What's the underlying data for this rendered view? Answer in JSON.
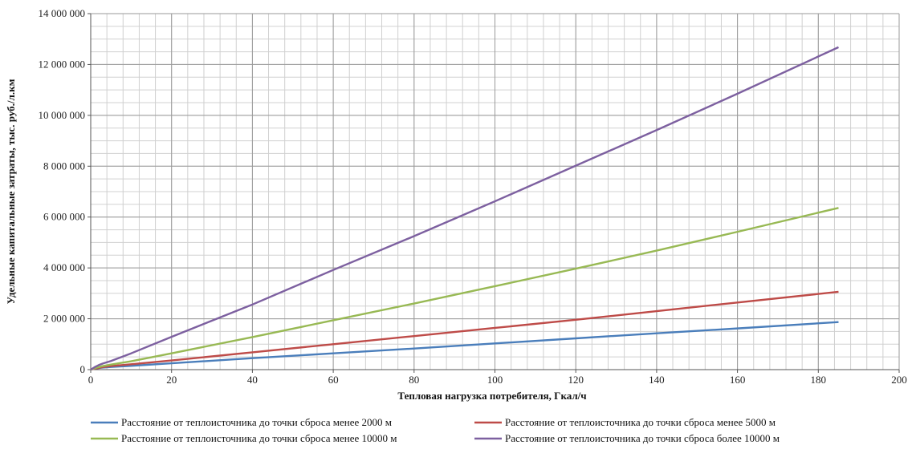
{
  "chart_data": {
    "type": "line",
    "xlabel": "Тепловая нагрузка потребителя, Гкал/ч",
    "ylabel": "Удельные капитальные затраты, тыс. руб./л.км",
    "xlim": [
      0,
      200
    ],
    "ylim": [
      0,
      14000000
    ],
    "x_ticks": [
      0,
      20,
      40,
      60,
      80,
      100,
      120,
      140,
      160,
      180,
      200
    ],
    "x_tick_labels": [
      "0",
      "20",
      "40",
      "60",
      "80",
      "100",
      "120",
      "140",
      "160",
      "180",
      "200"
    ],
    "y_ticks": [
      0,
      2000000,
      4000000,
      6000000,
      8000000,
      10000000,
      12000000,
      14000000
    ],
    "y_tick_labels": [
      "0",
      "2 000 000",
      "4 000 000",
      "6 000 000",
      "8 000 000",
      "10 000 000",
      "12 000 000",
      "14 000 000"
    ],
    "grid": true,
    "grid_minor_x_step": 4,
    "grid_minor_y_step": 500000,
    "legend_position": "bottom",
    "series": [
      {
        "name": "Расстояние от теплоисточника до точки сброса менее 2000 м",
        "color": "#4a7ebb",
        "x": [
          0,
          1,
          2,
          3,
          5,
          10,
          20,
          40,
          60,
          80,
          100,
          120,
          140,
          160,
          185
        ],
        "y": [
          0,
          40000,
          60000,
          80000,
          105000,
          150000,
          250000,
          450000,
          640000,
          830000,
          1030000,
          1230000,
          1430000,
          1620000,
          1870000
        ]
      },
      {
        "name": "Расстояние от теплоисточника до точки сброса менее 5000 м",
        "color": "#be4b48",
        "x": [
          0,
          1,
          2,
          3,
          5,
          10,
          20,
          40,
          60,
          80,
          100,
          120,
          140,
          160,
          185
        ],
        "y": [
          0,
          40000,
          70000,
          100000,
          140000,
          210000,
          360000,
          680000,
          1000000,
          1320000,
          1640000,
          1960000,
          2300000,
          2640000,
          3060000
        ]
      },
      {
        "name": "Расстояние от теплоисточника до точки сброса менее 10000 м",
        "color": "#98b954",
        "x": [
          0,
          1,
          2,
          3,
          5,
          10,
          20,
          40,
          60,
          80,
          100,
          120,
          140,
          160,
          185
        ],
        "y": [
          0,
          60000,
          100000,
          140000,
          200000,
          330000,
          640000,
          1280000,
          1940000,
          2600000,
          3280000,
          3970000,
          4680000,
          5420000,
          6360000
        ]
      },
      {
        "name": "Расстояние от теплоисточника до точки сброса более 10000 м",
        "color": "#7d60a0",
        "x": [
          0,
          1,
          2,
          3,
          5,
          10,
          20,
          40,
          60,
          80,
          100,
          120,
          140,
          160,
          185
        ],
        "y": [
          0,
          100000,
          180000,
          240000,
          340000,
          640000,
          1290000,
          2560000,
          3920000,
          5250000,
          6620000,
          8020000,
          9420000,
          10850000,
          12680000
        ]
      }
    ]
  }
}
